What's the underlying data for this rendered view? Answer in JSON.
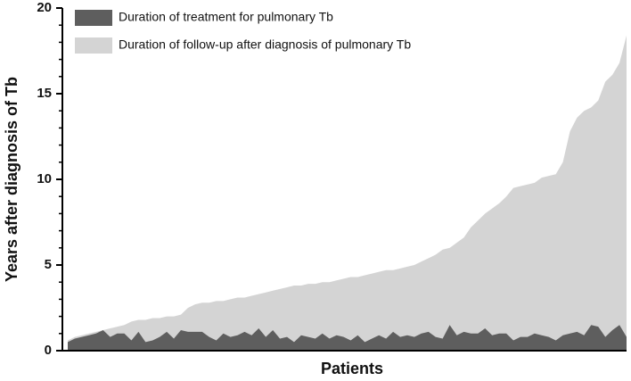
{
  "chart_data": {
    "type": "area",
    "x_label": "Patients",
    "y_label": "Years after diagnosis of Tb",
    "categories": [
      null,
      null,
      null,
      null,
      null,
      null,
      null,
      null,
      null,
      null,
      null,
      null,
      null,
      null,
      null,
      null,
      null,
      null,
      null,
      null,
      null,
      null,
      null,
      null,
      null,
      null,
      null,
      null,
      null,
      null,
      null,
      null,
      null,
      null,
      null,
      null,
      null,
      null,
      null,
      null,
      null,
      null,
      null,
      null,
      null,
      null,
      null,
      null,
      null,
      null,
      null,
      null,
      null,
      null,
      null,
      null,
      null,
      null,
      null,
      null,
      null,
      null,
      null,
      null,
      null,
      null,
      null,
      null,
      null,
      null,
      null,
      null,
      null,
      null,
      null,
      null,
      null,
      null,
      null,
      null
    ],
    "series": [
      {
        "name": "Duration of follow-up after diagnosis of pulmonary Tb",
        "color": "#d4d4d4",
        "values": [
          0.6,
          0.8,
          0.9,
          1.0,
          1.1,
          1.2,
          1.3,
          1.4,
          1.5,
          1.7,
          1.8,
          1.8,
          1.9,
          1.9,
          2.0,
          2.0,
          2.1,
          2.5,
          2.7,
          2.8,
          2.8,
          2.9,
          2.9,
          3.0,
          3.1,
          3.1,
          3.2,
          3.3,
          3.4,
          3.5,
          3.6,
          3.7,
          3.8,
          3.8,
          3.9,
          3.9,
          4.0,
          4.0,
          4.1,
          4.2,
          4.3,
          4.3,
          4.4,
          4.5,
          4.6,
          4.7,
          4.7,
          4.8,
          4.9,
          5.0,
          5.2,
          5.4,
          5.6,
          5.9,
          6.0,
          6.3,
          6.6,
          7.2,
          7.6,
          8.0,
          8.3,
          8.6,
          9.0,
          9.5,
          9.6,
          9.7,
          9.8,
          10.1,
          10.2,
          10.3,
          11.0,
          12.8,
          13.6,
          14.0,
          14.2,
          14.6,
          15.7,
          16.1,
          16.8,
          18.4
        ]
      },
      {
        "name": "Duration of treatment for pulmonary Tb",
        "color": "#5e5e5e",
        "values": [
          0.5,
          0.7,
          0.8,
          0.9,
          1.0,
          1.2,
          0.8,
          1.0,
          1.0,
          0.6,
          1.1,
          0.5,
          0.6,
          0.8,
          1.1,
          0.7,
          1.2,
          1.1,
          1.1,
          1.1,
          0.8,
          0.6,
          1.0,
          0.8,
          0.9,
          1.1,
          0.9,
          1.3,
          0.8,
          1.2,
          0.7,
          0.8,
          0.5,
          0.9,
          0.8,
          0.7,
          1.0,
          0.7,
          0.9,
          0.8,
          0.6,
          0.9,
          0.5,
          0.7,
          0.9,
          0.7,
          1.1,
          0.8,
          0.9,
          0.8,
          1.0,
          1.1,
          0.8,
          0.7,
          1.5,
          0.9,
          1.1,
          1.0,
          1.0,
          1.3,
          0.9,
          1.0,
          1.0,
          0.6,
          0.8,
          0.8,
          1.0,
          0.9,
          0.8,
          0.6,
          0.9,
          1.0,
          1.1,
          0.9,
          1.5,
          1.4,
          0.8,
          1.2,
          1.5,
          0.8
        ]
      }
    ],
    "legend_order": [
      1,
      0
    ],
    "ylim": [
      0,
      20
    ],
    "yticks": [
      0,
      5,
      10,
      15,
      20
    ],
    "yminorticks": [
      1,
      2,
      3,
      4,
      6,
      7,
      8,
      9,
      11,
      12,
      13,
      14,
      16,
      17,
      18,
      19
    ],
    "grid": false
  }
}
